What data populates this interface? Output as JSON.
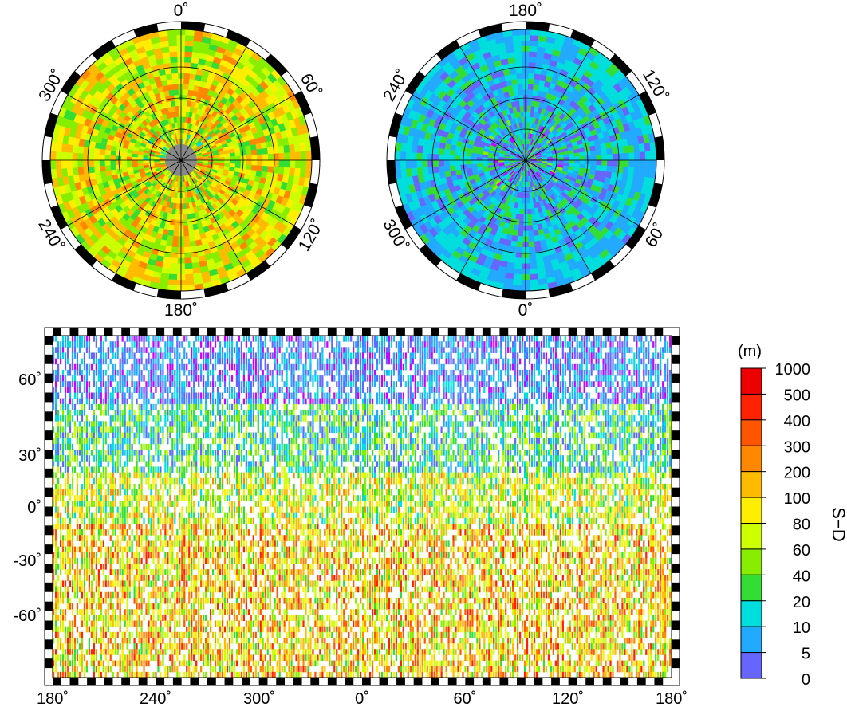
{
  "north_polar_map": {
    "center_label_top": "0˚",
    "labels": [
      "0˚",
      "60˚",
      "120˚",
      "180˚",
      "240˚",
      "300˚"
    ]
  },
  "south_polar_map": {
    "labels": [
      "180˚",
      "120˚",
      "60˚",
      "0˚",
      "300˚",
      "240˚"
    ]
  },
  "global_map": {
    "x_tick_labels": [
      "180˚",
      "240˚",
      "300˚",
      "0˚",
      "60˚",
      "120˚",
      "180˚"
    ],
    "y_tick_labels": [
      "60˚",
      "30˚",
      "0˚",
      "-30˚",
      "-60˚"
    ]
  },
  "colorbar": {
    "unit": "(m)",
    "title": "S−D",
    "tick_labels": [
      "1000",
      "500",
      "400",
      "300",
      "200",
      "100",
      "80",
      "60",
      "40",
      "20",
      "10",
      "5",
      "0"
    ],
    "colors": [
      "#ee0000",
      "#ff2200",
      "#ff5500",
      "#ff8800",
      "#ffbb00",
      "#ffee00",
      "#ccff00",
      "#88ee00",
      "#33dd33",
      "#00dddd",
      "#22aaff",
      "#6666ff",
      "#cc00ff"
    ]
  }
}
